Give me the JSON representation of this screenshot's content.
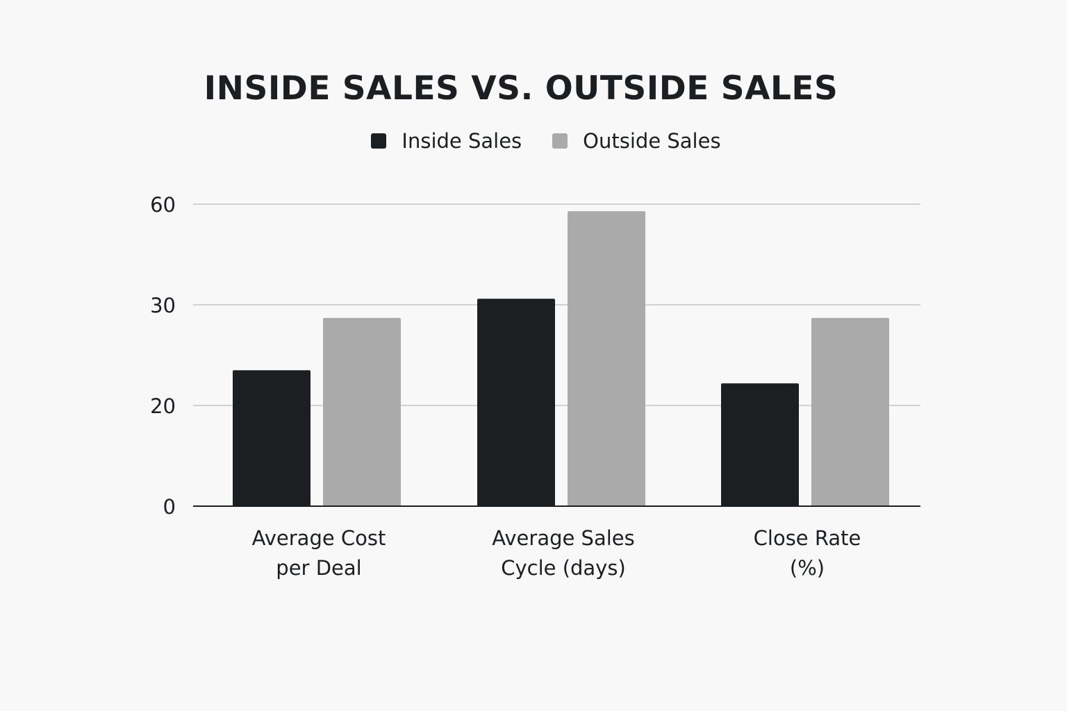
{
  "chart_data": {
    "type": "bar",
    "title": "INSIDE SALES VS. OUTSIDE SALES",
    "xlabel": "",
    "ylabel": "",
    "categories": [
      [
        "Average Cost",
        "per Deal"
      ],
      [
        "Average Sales",
        "Cycle (days)"
      ],
      [
        "Close Rate",
        "(%)"
      ]
    ],
    "y_ticks": [
      "0",
      "20",
      "30",
      "60"
    ],
    "y_scale_note": "tick labels are unevenly spaced; gridlines are evenly spaced",
    "series": [
      {
        "name": "Inside Sales",
        "color": "#1b1f22",
        "values": [
          23.5,
          31.8,
          22.2
        ]
      },
      {
        "name": "Outside Sales",
        "color": "#aaaaaa",
        "values": [
          28.7,
          57.9,
          28.7
        ]
      }
    ],
    "grid": true,
    "legend_position": "top-center"
  }
}
